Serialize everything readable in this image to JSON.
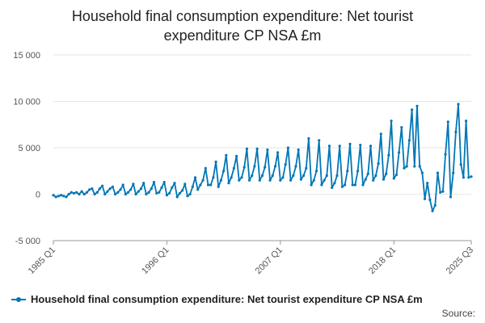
{
  "chart_data": {
    "type": "line",
    "title_lines": [
      "Household final consumption expenditure: Net tourist",
      "expenditure CP NSA £m"
    ],
    "xlabel": "",
    "ylabel": "",
    "x_ticks": [
      "1985 Q1",
      "1996 Q1",
      "2007 Q1",
      "2018 Q1",
      "2025 Q3"
    ],
    "y_ticks": [
      "-5 000",
      "0",
      "5 000",
      "10 000",
      "15 000"
    ],
    "ylim": [
      -5000,
      15000
    ],
    "grid": true,
    "legend_position": "bottom-left",
    "source_label": "Source:",
    "colors": {
      "series": "#0077b6",
      "grid": "#e6e6e6",
      "axis": "#999999",
      "text": "#555555"
    },
    "series": [
      {
        "name": "Household final consumption expenditure: Net tourist expenditure CP NSA £m",
        "years": [
          1985,
          1986,
          1987,
          1988,
          1989,
          1990,
          1991,
          1992,
          1993,
          1994,
          1995,
          1996,
          1997,
          1998,
          1999,
          2000,
          2001,
          2002,
          2003,
          2004,
          2005,
          2006,
          2007,
          2008,
          2009,
          2010,
          2011,
          2012,
          2013,
          2014,
          2015,
          2016,
          2017,
          2018,
          2019
        ],
        "q1": [
          -100,
          -200,
          100,
          0,
          0,
          0,
          0,
          0,
          0,
          0,
          100,
          -100,
          -300,
          -200,
          500,
          1000,
          800,
          1200,
          1500,
          1500,
          1500,
          1500,
          1500,
          1500,
          1600,
          1000,
          1000,
          700,
          800,
          1000,
          1000,
          1500,
          1600,
          1700,
          2800
        ],
        "q2": [
          -300,
          -300,
          200,
          200,
          200,
          300,
          200,
          200,
          300,
          200,
          200,
          100,
          100,
          0,
          1000,
          1000,
          1500,
          1800,
          1800,
          2000,
          2000,
          2000,
          1800,
          2000,
          2000,
          1500,
          1500,
          1200,
          1000,
          1000,
          1600,
          2000,
          2200,
          2100,
          3000
        ],
        "q3": [
          -200,
          0,
          0,
          500,
          600,
          600,
          500,
          500,
          600,
          600,
          700,
          700,
          400,
          800,
          1500,
          1800,
          2500,
          2800,
          2900,
          3000,
          2900,
          3000,
          3200,
          3000,
          2800,
          2500,
          2000,
          2000,
          2500,
          2500,
          2200,
          3300,
          4200,
          4500,
          5800
        ],
        "q4": [
          -100,
          200,
          300,
          600,
          900,
          800,
          1000,
          1100,
          1200,
          1300,
          1300,
          1200,
          1100,
          1800,
          2800,
          3500,
          4200,
          4100,
          4900,
          4900,
          4800,
          4500,
          5000,
          4800,
          6000,
          5800,
          5200,
          5200,
          5400,
          5300,
          5200,
          6500,
          7900,
          7200,
          9100
        ],
        "tail_x": [
          2020,
          2020.25,
          2020.5,
          2020.75,
          2021,
          2021.25,
          2021.5,
          2021.75,
          2022,
          2022.25,
          2022.5,
          2022.75,
          2023,
          2023.25,
          2023.5,
          2023.75,
          2024,
          2024.25,
          2024.5,
          2024.75,
          2025,
          2025.25,
          2025.5
        ],
        "tail_y": [
          3000,
          9500,
          3000,
          2300,
          -500,
          1200,
          -600,
          -1800,
          -1200,
          2300,
          200,
          300,
          4300,
          7800,
          -300,
          2300,
          6700,
          9700,
          3200,
          1800,
          7900,
          1800,
          1900
        ]
      }
    ]
  }
}
